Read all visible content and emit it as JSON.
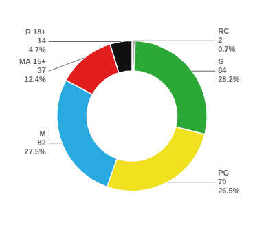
{
  "chart_data": {
    "type": "doughnut",
    "categories": [
      "RC",
      "G",
      "PG",
      "M",
      "MA 15+",
      "R 18+"
    ],
    "values": [
      0.7,
      28.2,
      26.5,
      27.5,
      12.4,
      4.7
    ],
    "value_labels": [
      "0.7%",
      "28.2%",
      "26.5%",
      "27.5%",
      "12.4%",
      "4.7%"
    ],
    "counts": [
      2,
      84,
      79,
      82,
      37,
      14
    ],
    "colors": [
      "#aaaaaa",
      "#2ca836",
      "#f0e020",
      "#29aadf",
      "#e31e1e",
      "#111111"
    ],
    "data_labels": true
  }
}
